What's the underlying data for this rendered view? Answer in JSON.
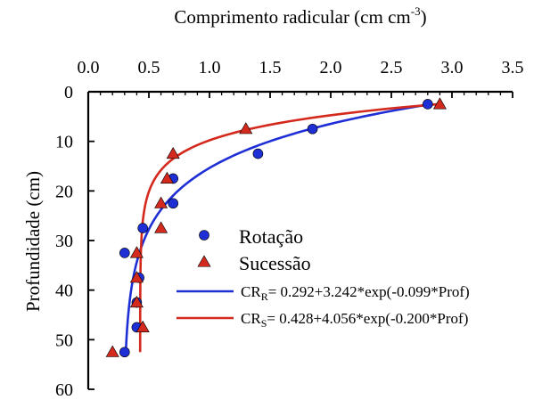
{
  "chart_data": {
    "type": "scatter",
    "xlabel": {
      "base": "Comprimento radicular (cm cm",
      "sup": "-3",
      "tail": ")"
    },
    "ylabel": "Profundidade (cm)",
    "xlim": [
      0,
      3.5
    ],
    "ylim": [
      0,
      60
    ],
    "x_ticks": [
      "0.0",
      "0.5",
      "1.0",
      "1.5",
      "2.0",
      "2.5",
      "3.0",
      "3.5"
    ],
    "y_ticks": [
      "0",
      "10",
      "20",
      "30",
      "40",
      "50",
      "60"
    ],
    "x_axis_position": "top",
    "y_inverted": true,
    "grid": false,
    "legend_position": "middle-right",
    "series": [
      {
        "name": "Rotação",
        "marker": "circle",
        "color": "#1f2fd6",
        "points": [
          {
            "x": 2.8,
            "y": 2.5
          },
          {
            "x": 1.85,
            "y": 7.5
          },
          {
            "x": 1.4,
            "y": 12.5
          },
          {
            "x": 0.7,
            "y": 17.5
          },
          {
            "x": 0.7,
            "y": 22.5
          },
          {
            "x": 0.45,
            "y": 27.5
          },
          {
            "x": 0.3,
            "y": 32.5
          },
          {
            "x": 0.42,
            "y": 37.5
          },
          {
            "x": 0.4,
            "y": 42.5
          },
          {
            "x": 0.4,
            "y": 47.5
          },
          {
            "x": 0.3,
            "y": 52.5
          }
        ]
      },
      {
        "name": "Sucessão",
        "marker": "triangle",
        "color": "#d42a1e",
        "points": [
          {
            "x": 2.9,
            "y": 2.5
          },
          {
            "x": 1.3,
            "y": 7.5
          },
          {
            "x": 0.7,
            "y": 12.5
          },
          {
            "x": 0.65,
            "y": 17.5
          },
          {
            "x": 0.6,
            "y": 22.5
          },
          {
            "x": 0.6,
            "y": 27.5
          },
          {
            "x": 0.4,
            "y": 32.5
          },
          {
            "x": 0.4,
            "y": 37.5
          },
          {
            "x": 0.4,
            "y": 42.5
          },
          {
            "x": 0.45,
            "y": 47.5
          },
          {
            "x": 0.2,
            "y": 52.5
          }
        ]
      }
    ],
    "fits": [
      {
        "label": {
          "pre": "CR",
          "sub": "R",
          "post": "= 0.292+3.242*exp(-0.099*Prof)"
        },
        "a": 0.292,
        "b": 3.242,
        "k": 0.099,
        "color": "#1f2fd6",
        "depth_range": [
          2.5,
          52.5
        ]
      },
      {
        "label": {
          "pre": "CR",
          "sub": "S",
          "post": "= 0.428+4.056*exp(-0.200*Prof)"
        },
        "a": 0.428,
        "b": 4.056,
        "k": 0.2,
        "color": "#d42a1e",
        "depth_range": [
          2.5,
          52.5
        ]
      }
    ]
  }
}
